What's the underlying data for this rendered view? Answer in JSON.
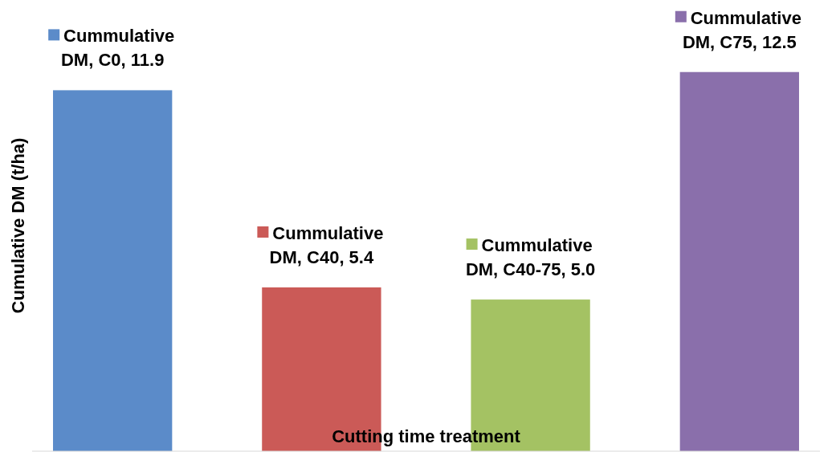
{
  "chart_data": {
    "type": "bar",
    "xlabel": "Cutting time treatment",
    "ylabel": "Cumulative DM (t/ha)",
    "categories": [
      null,
      null,
      null,
      null
    ],
    "values": [
      11.9,
      5.4,
      5.0,
      12.5
    ],
    "colors": [
      "#5b8bc9",
      "#cb5a57",
      "#a4c263",
      "#8a6fab"
    ],
    "value_labels": [
      "Cummulative DM, C0, 11.9",
      "Cummulative DM, C40, 5.4",
      "Cummulative DM, C40-75, 5.0",
      "Cummulative DM, C75, 12.5"
    ]
  }
}
